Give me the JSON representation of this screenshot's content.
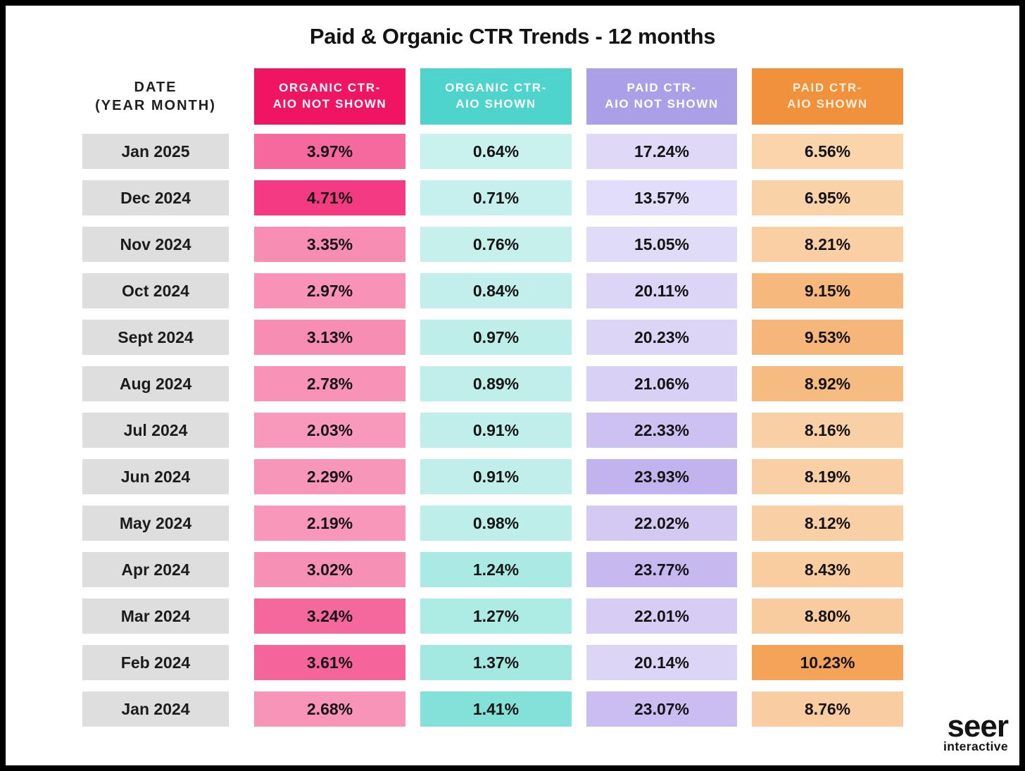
{
  "title": "Paid & Organic CTR Trends - 12 months",
  "chart_data": {
    "type": "table",
    "title": "Paid & Organic CTR Trends - 12 months",
    "row_label_header": [
      "DATE",
      "(YEAR MONTH)"
    ],
    "series_headers": [
      {
        "line1": "ORGANIC CTR-",
        "line2": "AIO NOT SHOWN",
        "color": "#EF1562",
        "name": "Organic CTR - AIO Not Shown"
      },
      {
        "line1": "ORGANIC CTR-",
        "line2": "AIO SHOWN",
        "color": "#4FD4CD",
        "name": "Organic CTR - AIO Shown"
      },
      {
        "line1": "PAID CTR-",
        "line2": "AIO NOT SHOWN",
        "color": "#ABA0E8",
        "name": "Paid CTR - AIO Not Shown"
      },
      {
        "line1": "PAID CTR-",
        "line2": "AIO SHOWN",
        "color": "#F1913B",
        "name": "Paid CTR - AIO Shown"
      }
    ],
    "date_cell_color": "#DEDEDE",
    "rows": [
      {
        "date": "Jan 2025",
        "values": [
          3.97,
          0.64,
          17.24,
          6.56
        ],
        "display": [
          "3.97%",
          "0.64%",
          "17.24%",
          "6.56%"
        ],
        "cell_colors": [
          "#F6699E",
          "#C9F1EE",
          "#DFD9F7",
          "#FAD4AB"
        ]
      },
      {
        "date": "Dec 2024",
        "values": [
          4.71,
          0.71,
          13.57,
          6.95
        ],
        "display": [
          "4.71%",
          "0.71%",
          "13.57%",
          "6.95%"
        ],
        "cell_colors": [
          "#F43A81",
          "#C6F0ED",
          "#E2DDF8",
          "#FAD2A8"
        ]
      },
      {
        "date": "Nov 2024",
        "values": [
          3.35,
          0.76,
          15.05,
          8.21
        ],
        "display": [
          "3.35%",
          "0.76%",
          "15.05%",
          "8.21%"
        ],
        "cell_colors": [
          "#F78DB3",
          "#C5F0EC",
          "#E0DBF7",
          "#F9CFA3"
        ]
      },
      {
        "date": "Oct 2024",
        "values": [
          2.97,
          0.84,
          20.11,
          9.15
        ],
        "display": [
          "2.97%",
          "0.84%",
          "20.11%",
          "9.15%"
        ],
        "cell_colors": [
          "#F893B7",
          "#C2EFEB",
          "#DCD5F6",
          "#F6B87C"
        ]
      },
      {
        "date": "Sept 2024",
        "values": [
          3.13,
          0.97,
          20.23,
          9.53
        ],
        "display": [
          "3.13%",
          "0.97%",
          "20.23%",
          "9.53%"
        ],
        "cell_colors": [
          "#F78DB3",
          "#BEEEEA",
          "#DCD5F6",
          "#F6B67A"
        ]
      },
      {
        "date": "Aug 2024",
        "values": [
          2.78,
          0.89,
          21.06,
          8.92
        ],
        "display": [
          "2.78%",
          "0.89%",
          "21.06%",
          "8.92%"
        ],
        "cell_colors": [
          "#F893B7",
          "#C0EFEB",
          "#D9D1F5",
          "#F6BB80"
        ]
      },
      {
        "date": "Jul 2024",
        "values": [
          2.03,
          0.91,
          22.33,
          8.16
        ],
        "display": [
          "2.03%",
          "0.91%",
          "22.33%",
          "8.16%"
        ],
        "cell_colors": [
          "#F899BC",
          "#C0EFEB",
          "#CDC1F1",
          "#F9D0A5"
        ]
      },
      {
        "date": "Jun 2024",
        "values": [
          2.29,
          0.91,
          23.93,
          8.19
        ],
        "display": [
          "2.29%",
          "0.91%",
          "23.93%",
          "8.19%"
        ],
        "cell_colors": [
          "#F896B9",
          "#C0EFEB",
          "#C2B2EE",
          "#F9D0A5"
        ]
      },
      {
        "date": "May 2024",
        "values": [
          2.19,
          0.98,
          22.02,
          8.12
        ],
        "display": [
          "2.19%",
          "0.98%",
          "22.02%",
          "8.12%"
        ],
        "cell_colors": [
          "#F897BA",
          "#BDEEE9",
          "#D3C9F3",
          "#F9D0A6"
        ]
      },
      {
        "date": "Apr 2024",
        "values": [
          3.02,
          1.24,
          23.77,
          8.43
        ],
        "display": [
          "3.02%",
          "1.24%",
          "23.77%",
          "8.43%"
        ],
        "cell_colors": [
          "#F790B5",
          "#A9EAE4",
          "#C8B8F0",
          "#F9CDA0"
        ]
      },
      {
        "date": "Mar 2024",
        "values": [
          3.24,
          1.27,
          22.01,
          8.8
        ],
        "display": [
          "3.24%",
          "1.27%",
          "22.01%",
          "8.80%"
        ],
        "cell_colors": [
          "#F5689D",
          "#ADEBE5",
          "#D6CCF4",
          "#F9CCA0"
        ]
      },
      {
        "date": "Feb 2024",
        "values": [
          3.61,
          1.37,
          20.14,
          10.23
        ],
        "display": [
          "3.61%",
          "1.37%",
          "20.14%",
          "10.23%"
        ],
        "cell_colors": [
          "#F5659B",
          "#A3E9E2",
          "#DCD5F6",
          "#F4A359"
        ]
      },
      {
        "date": "Jan 2024",
        "values": [
          2.68,
          1.41,
          23.07,
          8.76
        ],
        "display": [
          "2.68%",
          "1.41%",
          "23.07%",
          "8.76%"
        ],
        "cell_colors": [
          "#F794B8",
          "#83E1D9",
          "#CBBDF1",
          "#F9CDA1"
        ]
      }
    ]
  },
  "logo": {
    "brand": "seer",
    "sub": "interactive"
  }
}
